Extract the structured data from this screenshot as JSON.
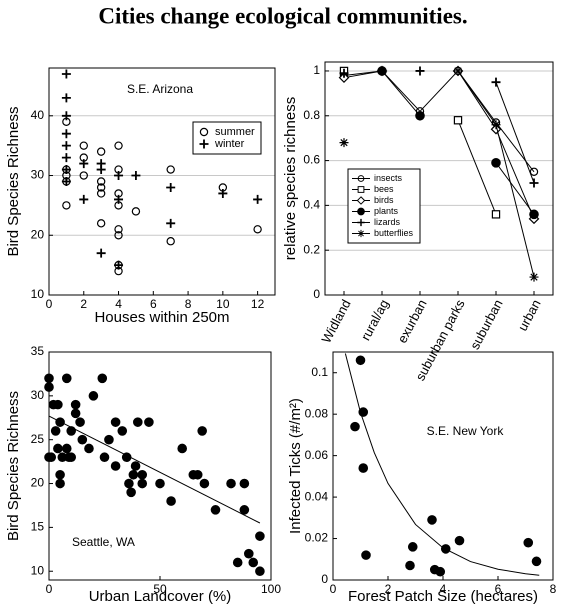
{
  "title": "Cities change ecological communities.",
  "chart_data": [
    {
      "type": "scatter",
      "xlabel": "Houses within 250m",
      "ylabel": "Bird Species Richness",
      "annotation": "S.E. Arizona",
      "xlim": [
        0,
        13
      ],
      "ylim": [
        10,
        48
      ],
      "xticks": [
        0,
        2,
        4,
        6,
        8,
        10,
        12
      ],
      "yticks": [
        10,
        20,
        30,
        40
      ],
      "grid": true,
      "legend": "upper right",
      "series": [
        {
          "name": "summer",
          "marker": "circle",
          "color": "#000000",
          "x": [
            1,
            1,
            1,
            1,
            1,
            2,
            2,
            2,
            3,
            3,
            3,
            3,
            3,
            4,
            4,
            4,
            4,
            4,
            4,
            4,
            4,
            5,
            7,
            7,
            10,
            12
          ],
          "y": [
            25,
            29,
            30,
            31,
            39,
            30,
            35,
            33,
            34,
            29,
            28,
            27,
            22,
            35,
            31,
            27,
            25,
            21,
            20,
            15,
            14,
            24,
            31,
            19,
            28,
            21
          ]
        },
        {
          "name": "winter",
          "marker": "plus",
          "color": "#000000",
          "x": [
            1,
            1,
            1,
            1,
            1,
            1,
            1,
            1,
            2,
            2,
            3,
            3,
            3,
            4,
            4,
            4,
            5,
            7,
            7,
            10,
            12
          ],
          "y": [
            47,
            43,
            40,
            37,
            35,
            33,
            31,
            29,
            32,
            26,
            32,
            31,
            17,
            30,
            26,
            15,
            30,
            28,
            22,
            27,
            26
          ]
        }
      ]
    },
    {
      "type": "line",
      "ylabel": "relative species richness",
      "categories": [
        "Widland",
        "rural/ag",
        "exurban",
        "suburban parks",
        "suburban",
        "urban"
      ],
      "ylim": [
        0,
        1.04
      ],
      "yticks": [
        0,
        0.2,
        0.4,
        0.6,
        0.8,
        1
      ],
      "grid": true,
      "legend": "lower left",
      "series": [
        {
          "name": "insects",
          "marker": "circle",
          "color": "#000000",
          "values": [
            0.98,
            1.0,
            0.82,
            1.0,
            0.77,
            0.55
          ]
        },
        {
          "name": "bees",
          "marker": "square",
          "color": "#000000",
          "values": [
            1.0,
            null,
            null,
            0.78,
            0.36,
            null
          ]
        },
        {
          "name": "birds",
          "marker": "diamond",
          "color": "#000000",
          "values": [
            0.97,
            1.0,
            null,
            1.0,
            0.74,
            0.34
          ]
        },
        {
          "name": "plants",
          "marker": "dot",
          "color": "#000000",
          "values": [
            null,
            1.0,
            0.8,
            null,
            0.59,
            0.36
          ]
        },
        {
          "name": "lizards",
          "marker": "plus",
          "color": "#000000",
          "values": [
            0.99,
            null,
            1.0,
            null,
            0.95,
            0.5
          ]
        },
        {
          "name": "butterflies",
          "marker": "star",
          "color": "#000000",
          "values": [
            0.68,
            null,
            null,
            1.0,
            0.76,
            0.08
          ]
        }
      ]
    },
    {
      "type": "scatter",
      "xlabel": "Urban Landcover (%)",
      "ylabel": "Bird Species Richness",
      "annotation": "Seattle, WA",
      "xlim": [
        0,
        100
      ],
      "ylim": [
        9,
        35
      ],
      "xticks": [
        0,
        50,
        100
      ],
      "yticks": [
        10,
        15,
        20,
        25,
        30,
        35
      ],
      "grid": false,
      "series": [
        {
          "marker": "dot",
          "color": "#000000",
          "x": [
            0,
            0,
            0,
            1,
            2,
            3,
            4,
            5,
            5,
            4,
            5,
            6,
            8,
            8,
            9,
            10,
            10,
            12,
            12,
            14,
            15,
            18,
            20,
            24,
            25,
            27,
            30,
            30,
            33,
            35,
            36,
            37,
            38,
            39,
            40,
            42,
            42,
            45,
            50,
            55,
            60,
            65,
            67,
            69,
            70,
            75,
            82,
            85,
            88,
            88,
            90,
            92,
            95,
            95
          ],
          "y": [
            31,
            32,
            23,
            23,
            29,
            26,
            24,
            21,
            20,
            29,
            27,
            23,
            32,
            24,
            23,
            26,
            23,
            29,
            28,
            27,
            25,
            24,
            30,
            32,
            23,
            25,
            27,
            22,
            26,
            23,
            20,
            19,
            21,
            22,
            27,
            20,
            21,
            27,
            20,
            18,
            24,
            21,
            21,
            26,
            20,
            17,
            20,
            11,
            20,
            17,
            12,
            11,
            14,
            10
          ]
        }
      ],
      "fit_x": [
        0,
        95
      ],
      "fit_y": [
        27.7,
        15.5
      ]
    },
    {
      "type": "scatter",
      "xlabel": "Forest Patch Size (hectares)",
      "ylabel": "Infected Ticks (#/m²)",
      "annotation": "S.E. New York",
      "xlim": [
        0,
        8
      ],
      "ylim": [
        0,
        0.11
      ],
      "xticks": [
        0,
        2,
        4,
        6,
        8
      ],
      "yticks": [
        0,
        0.02,
        0.04,
        0.06,
        0.08,
        0.1
      ],
      "grid": false,
      "series": [
        {
          "marker": "dot",
          "color": "#000000",
          "x": [
            0.8,
            1.0,
            1.1,
            1.1,
            1.2,
            2.9,
            2.8,
            3.6,
            3.7,
            3.9,
            4.1,
            4.6,
            7.1,
            7.4
          ],
          "y": [
            0.074,
            0.106,
            0.081,
            0.054,
            0.012,
            0.016,
            0.007,
            0.029,
            0.005,
            0.004,
            0.015,
            0.019,
            0.018,
            0.009
          ]
        }
      ],
      "fit_x": [
        0.45,
        1,
        1.5,
        2,
        3,
        4,
        5,
        6,
        7,
        7.5
      ],
      "fit_y": [
        0.1093,
        0.0808,
        0.0615,
        0.0466,
        0.0268,
        0.0155,
        0.0089,
        0.0052,
        0.003,
        0.0023
      ]
    }
  ]
}
